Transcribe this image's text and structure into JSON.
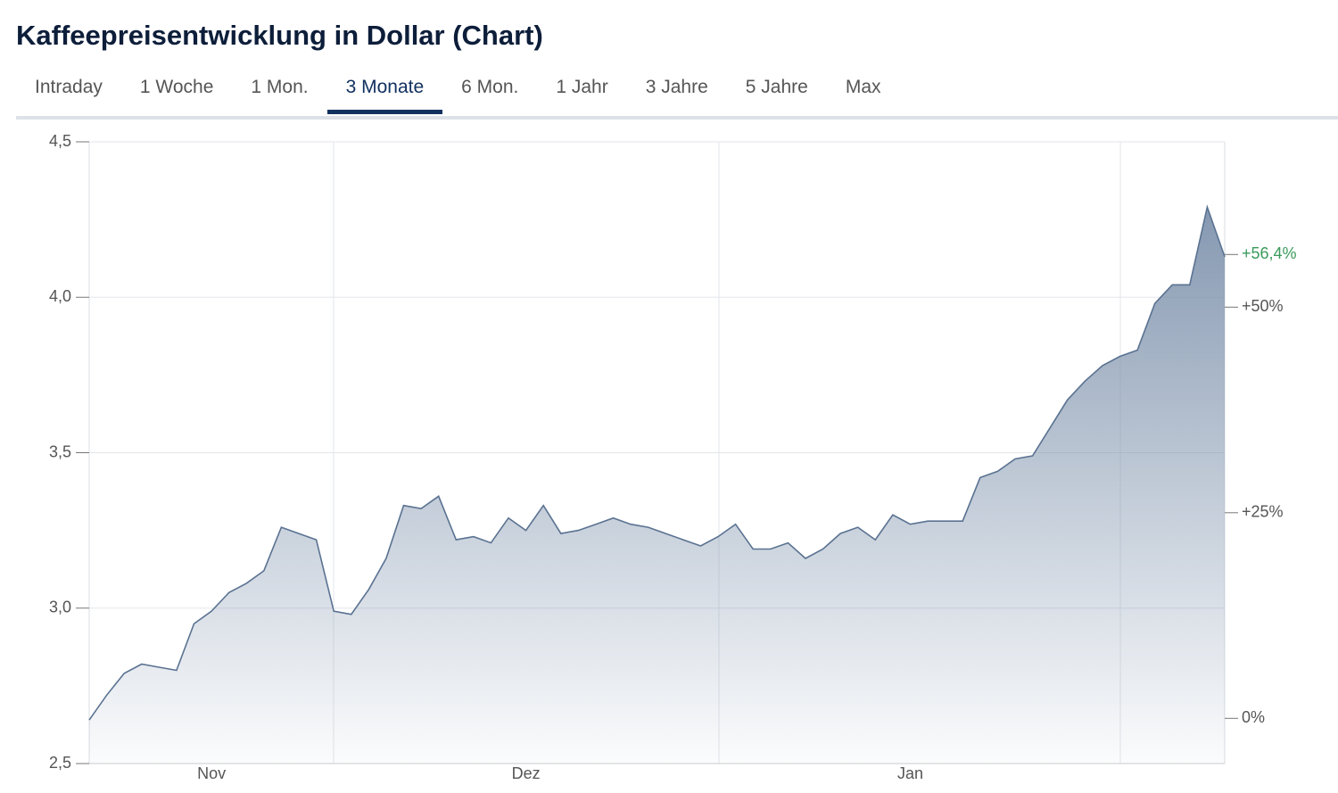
{
  "header": {
    "title": "Kaffeepreisentwicklung in Dollar (Chart)"
  },
  "tabs": [
    "Intraday",
    "1 Woche",
    "1 Mon.",
    "3 Monate",
    "6 Mon.",
    "1 Jahr",
    "3 Jahre",
    "5 Jahre",
    "Max"
  ],
  "active_tab": 3,
  "chart_data": {
    "type": "area",
    "categories": [
      null,
      null,
      null,
      null,
      null,
      null,
      null,
      "Nov",
      null,
      null,
      null,
      null,
      null,
      null,
      null,
      null,
      null,
      null,
      null,
      null,
      null,
      null,
      null,
      null,
      null,
      "Dez",
      null,
      null,
      null,
      null,
      null,
      null,
      null,
      null,
      null,
      null,
      null,
      null,
      null,
      null,
      null,
      null,
      null,
      null,
      null,
      null,
      null,
      "Jan",
      null,
      null,
      null,
      null,
      null,
      null,
      null,
      null,
      null,
      null,
      null,
      null,
      null,
      null,
      null,
      null,
      null,
      null
    ],
    "values": [
      2.64,
      2.72,
      2.79,
      2.82,
      2.81,
      2.8,
      2.95,
      2.99,
      3.05,
      3.08,
      3.12,
      3.26,
      3.24,
      3.22,
      2.99,
      2.98,
      3.06,
      3.16,
      3.33,
      3.32,
      3.36,
      3.22,
      3.23,
      3.21,
      3.29,
      3.25,
      3.33,
      3.24,
      3.25,
      3.27,
      3.29,
      3.27,
      3.26,
      3.24,
      3.22,
      3.2,
      3.23,
      3.27,
      3.19,
      3.19,
      3.21,
      3.16,
      3.19,
      3.24,
      3.26,
      3.22,
      3.3,
      3.27,
      3.28,
      3.28,
      3.28,
      3.42,
      3.44,
      3.48,
      3.49,
      3.58,
      3.67,
      3.73,
      3.78,
      3.81,
      3.83,
      3.98,
      4.04,
      4.04,
      4.29,
      4.13
    ],
    "color": "#5a7291",
    "ylim": [
      2.5,
      4.5
    ],
    "yticks": [
      {
        "value": 2.5,
        "label": "2,5"
      },
      {
        "value": 3.0,
        "label": "3,0"
      },
      {
        "value": 3.5,
        "label": "3,5"
      },
      {
        "value": 4.0,
        "label": "4,0"
      },
      {
        "value": 4.5,
        "label": "4,5"
      }
    ],
    "y2lim": [
      -5.5,
      70.1
    ],
    "y2ticks": [
      {
        "value": 0,
        "label": "0%"
      },
      {
        "value": 25,
        "label": "+25%"
      },
      {
        "value": 50,
        "label": "+50%"
      }
    ],
    "last_change": {
      "value": 56.4,
      "label": "+56,4%"
    },
    "last_change_color": "#3a9a5b",
    "grid": true
  }
}
